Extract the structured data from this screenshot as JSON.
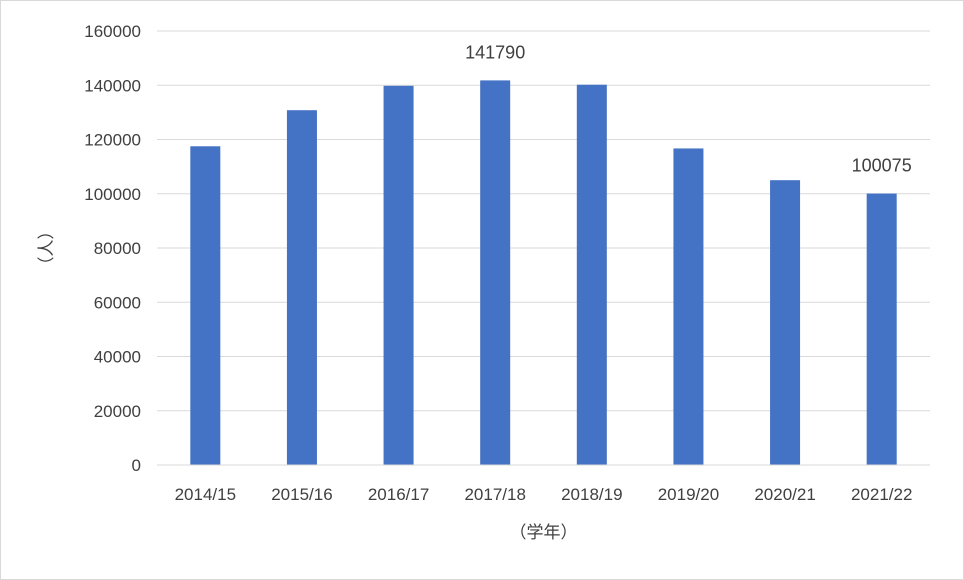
{
  "chart_data": {
    "type": "bar",
    "title": "",
    "xlabel": "（学年）",
    "ylabel": "（人）",
    "ylim": [
      0,
      160000
    ],
    "yticks": [
      0,
      20000,
      40000,
      60000,
      80000,
      100000,
      120000,
      140000,
      160000
    ],
    "grid": true,
    "bar_color": "#4472c4",
    "categories": [
      "2014/15",
      "2015/16",
      "2016/17",
      "2017/18",
      "2018/19",
      "2019/20",
      "2020/21",
      "2021/22"
    ],
    "values": [
      117500,
      130800,
      139800,
      141790,
      140200,
      116700,
      105000,
      100075
    ],
    "data_labels": [
      {
        "category": "2017/18",
        "text": "141790"
      },
      {
        "category": "2021/22",
        "text": "100075"
      }
    ]
  }
}
